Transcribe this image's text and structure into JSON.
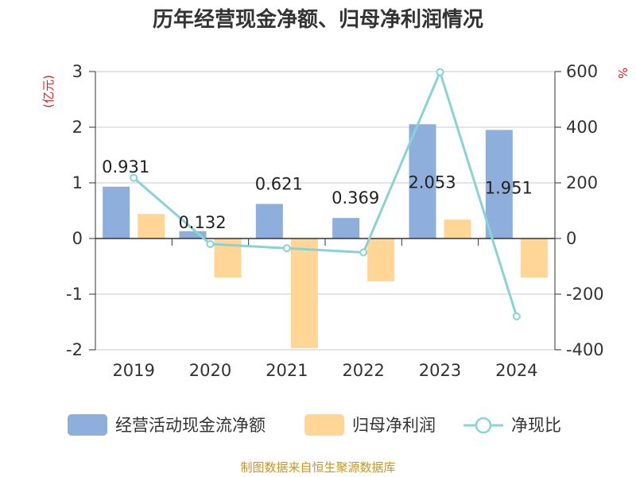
{
  "title": "历年经营现金净额、归母净利润情况",
  "left_unit": "(亿元)",
  "right_unit": "%",
  "source": "制图数据来自恒生聚源数据库",
  "colors": {
    "cashflow": "#8eaedc",
    "profit": "#ffd696",
    "ratio": "#88d3d6",
    "grid": "#c8c8c8",
    "axis": "#333333"
  },
  "chart_data": {
    "type": "bar",
    "categories": [
      "2019",
      "2020",
      "2021",
      "2022",
      "2023",
      "2024"
    ],
    "ylim": [
      -2,
      3
    ],
    "y_ticks": [
      "-2",
      "-1",
      "0",
      "1",
      "2",
      "3"
    ],
    "y2lim": [
      -400,
      600
    ],
    "y2_ticks": [
      "-400",
      "-200",
      "0",
      "200",
      "400",
      "600"
    ],
    "grid": true,
    "legend_position": "bottom",
    "series": [
      {
        "name": "经营活动现金流净额",
        "type": "bar",
        "axis": "left",
        "values": [
          0.931,
          0.132,
          0.621,
          0.369,
          2.053,
          1.951
        ],
        "labels": [
          "0.931",
          "0.132",
          "0.621",
          "0.369",
          "2.053",
          "1.951"
        ]
      },
      {
        "name": "归母净利润",
        "type": "bar",
        "axis": "left",
        "values": [
          0.44,
          -0.7,
          -1.97,
          -0.77,
          0.34,
          -0.7
        ]
      },
      {
        "name": "净现比",
        "type": "line",
        "axis": "right",
        "values": [
          218,
          -20,
          -35,
          -50,
          598,
          -280
        ]
      }
    ]
  }
}
